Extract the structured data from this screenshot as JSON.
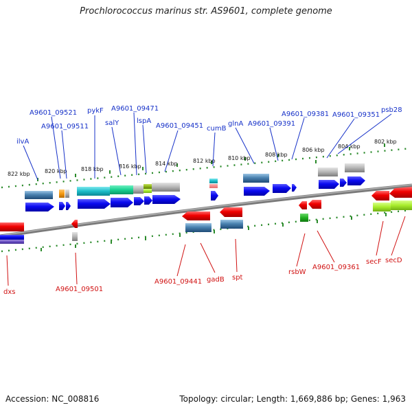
{
  "title": "Prochlorococcus marinus str. AS9601, complete genome",
  "accession": "Accession: NC_008816",
  "summary": "Topology: circular; Length: 1,669,886 bp; Genes: 1,963",
  "colors": {
    "forward_label": "#1530c8",
    "reverse_label": "#d01010",
    "backbone": "#777777",
    "tick": "#2a8a2a"
  },
  "scale": {
    "labels": [
      "822 kbp",
      "820 kbp",
      "818 kbp",
      "816 kbp",
      "814 kbp",
      "812 kbp",
      "810 kbp",
      "808 kbp",
      "806 kbp",
      "804 kbp",
      "802 kbp"
    ]
  },
  "genes": {
    "forward": [
      "ilvA",
      "A9601_09521",
      "A9601_09511",
      "pykF",
      "salY",
      "A9601_09471",
      "lspA",
      "A9601_09451",
      "cumB",
      "glnA",
      "A9601_09391",
      "A9601_09381",
      "A9601_09351",
      "psb28"
    ],
    "reverse": [
      "dxs",
      "A9601_09501",
      "A9601_09441",
      "gadB",
      "spt",
      "rsbW",
      "A9601_09361",
      "secF",
      "secD"
    ]
  }
}
